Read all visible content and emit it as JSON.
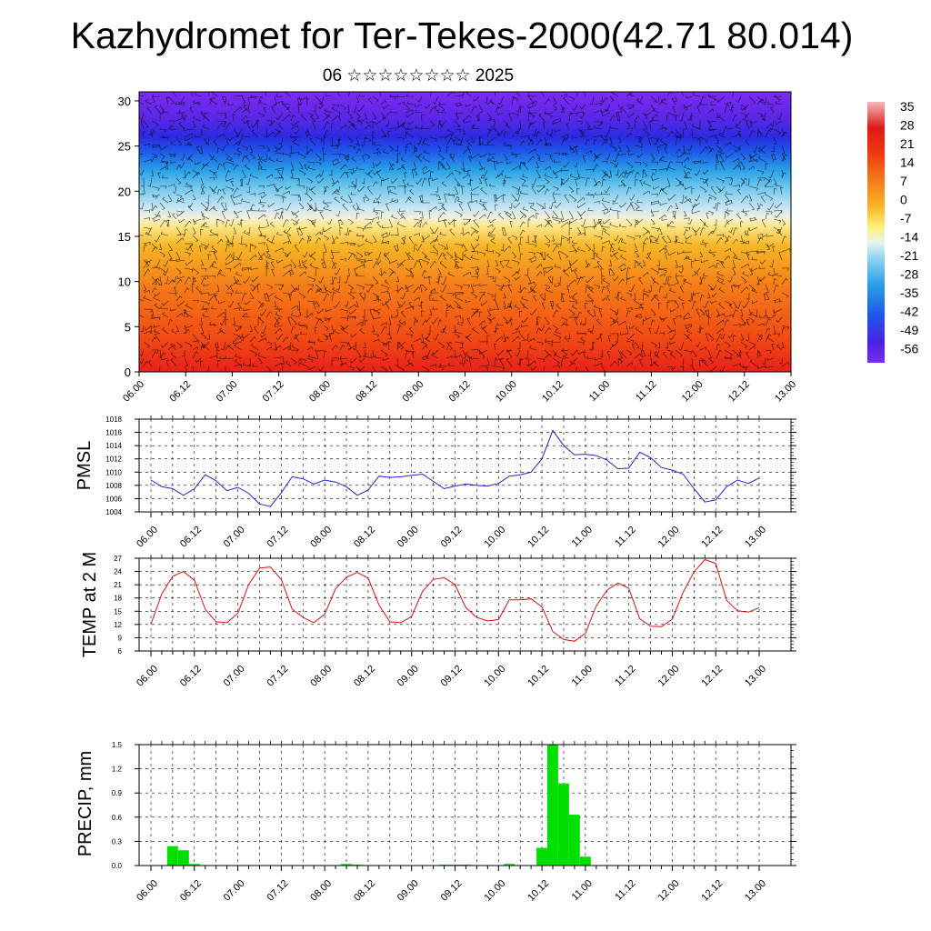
{
  "title": "Kazhydromet for Ter-Tekes-2000(42.71 80.014)",
  "subtitle": "06 ☆☆☆☆☆☆☆☆ 2025",
  "colors": {
    "pmsl_line": "#2222dd",
    "temp_line": "#dd1111",
    "precip_bar": "#00e000",
    "grid": "#000000"
  },
  "chart_data": [
    {
      "type": "heatmap",
      "name": "vertical-section",
      "x_tick_labels": [
        "06.00",
        "06.12",
        "07.00",
        "07.12",
        "08.00",
        "08.12",
        "09.00",
        "09.12",
        "10.00",
        "10.12",
        "11.00",
        "11.12",
        "12.00",
        "12.12",
        "13.00"
      ],
      "y_tick_labels": [
        "0",
        "5",
        "10",
        "15",
        "20",
        "25",
        "30"
      ],
      "ylim": [
        0,
        31
      ],
      "colorbar": {
        "labels": [
          "35",
          "28",
          "21",
          "14",
          "7",
          "0",
          "-7",
          "-14",
          "-21",
          "-28",
          "-35",
          "-42",
          "-49",
          "-56"
        ],
        "range": [
          -63,
          42
        ]
      },
      "levels_description": "temperature shading by height with wind barbs"
    },
    {
      "type": "line",
      "ylabel": "PMSL",
      "ylim": [
        1004,
        1018
      ],
      "y_tick_labels": [
        "1004",
        "1006",
        "1008",
        "1010",
        "1012",
        "1014",
        "1016",
        "1018"
      ],
      "x_tick_labels": [
        "06.00",
        "06.12",
        "07.00",
        "07.12",
        "08.00",
        "08.12",
        "09.00",
        "09.12",
        "10.00",
        "10.12",
        "11.00",
        "11.12",
        "12.00",
        "12.12",
        "13.00"
      ],
      "x_hours_step": 3,
      "values": [
        1008.8,
        1007.8,
        1007.5,
        1006.5,
        1007.5,
        1009.6,
        1008.7,
        1007.2,
        1007.7,
        1006.8,
        1005.2,
        1004.8,
        1006.9,
        1009.3,
        1009.0,
        1008.2,
        1008.8,
        1008.5,
        1007.8,
        1006.5,
        1007.3,
        1009.4,
        1009.2,
        1009.3,
        1009.5,
        1009.7,
        1008.6,
        1007.5,
        1007.9,
        1008.2,
        1008.0,
        1007.9,
        1008.3,
        1009.4,
        1009.6,
        1010.0,
        1012.0,
        1016.3,
        1014.0,
        1012.6,
        1012.7,
        1012.5,
        1011.8,
        1010.5,
        1010.6,
        1013.0,
        1012.2,
        1010.7,
        1010.3,
        1009.7,
        1007.5,
        1005.5,
        1005.8,
        1007.8,
        1008.8,
        1008.3,
        1009.1
      ]
    },
    {
      "type": "line",
      "ylabel": "TEMP at 2 M",
      "ylim": [
        6,
        27
      ],
      "y_tick_labels": [
        "6",
        "9",
        "12",
        "15",
        "18",
        "21",
        "24",
        "27"
      ],
      "x_tick_labels": [
        "06.00",
        "06.12",
        "07.00",
        "07.12",
        "08.00",
        "08.12",
        "09.00",
        "09.12",
        "10.00",
        "10.12",
        "11.00",
        "11.12",
        "12.00",
        "12.12",
        "13.00"
      ],
      "x_hours_step": 3,
      "values": [
        12.1,
        18.9,
        22.9,
        24.0,
        22.0,
        15.5,
        12.6,
        12.4,
        14.5,
        21.0,
        24.8,
        25.0,
        22.2,
        15.5,
        13.6,
        12.4,
        14.3,
        20.1,
        22.7,
        23.8,
        22.5,
        16.4,
        12.6,
        12.4,
        13.8,
        19.5,
        22.2,
        22.6,
        21.0,
        15.8,
        13.6,
        12.8,
        13.1,
        17.6,
        17.6,
        17.8,
        16.0,
        10.4,
        8.6,
        8.2,
        10.0,
        16.2,
        19.8,
        21.4,
        20.2,
        13.3,
        11.6,
        11.5,
        13.2,
        19.3,
        23.9,
        26.7,
        25.8,
        17.5,
        15.1,
        14.8,
        15.8
      ]
    },
    {
      "type": "bar",
      "ylabel": "PRECIP, mm",
      "ylim": [
        0,
        1.5
      ],
      "y_tick_labels": [
        "0.0",
        "0.3",
        "0.6",
        "0.9",
        "1.2",
        "1.5"
      ],
      "x_tick_labels": [
        "06.00",
        "06.12",
        "07.00",
        "07.12",
        "08.00",
        "08.12",
        "09.00",
        "09.12",
        "10.00",
        "10.12",
        "11.00",
        "11.12",
        "12.00",
        "12.12",
        "13.00"
      ],
      "x_hours_step": 3,
      "values": [
        0,
        0,
        0.24,
        0.19,
        0.02,
        0,
        0,
        0,
        0,
        0,
        0,
        0,
        0,
        0,
        0,
        0,
        0,
        0,
        0.02,
        0.01,
        0,
        0,
        0,
        0,
        0,
        0,
        0,
        0.01,
        0.01,
        0.01,
        0,
        0,
        0,
        0.02,
        0,
        0,
        0.22,
        1.5,
        1.02,
        0.63,
        0.11,
        0,
        0,
        0,
        0,
        0,
        0,
        0,
        0,
        0,
        0,
        0,
        0,
        0,
        0,
        0,
        0
      ]
    }
  ]
}
